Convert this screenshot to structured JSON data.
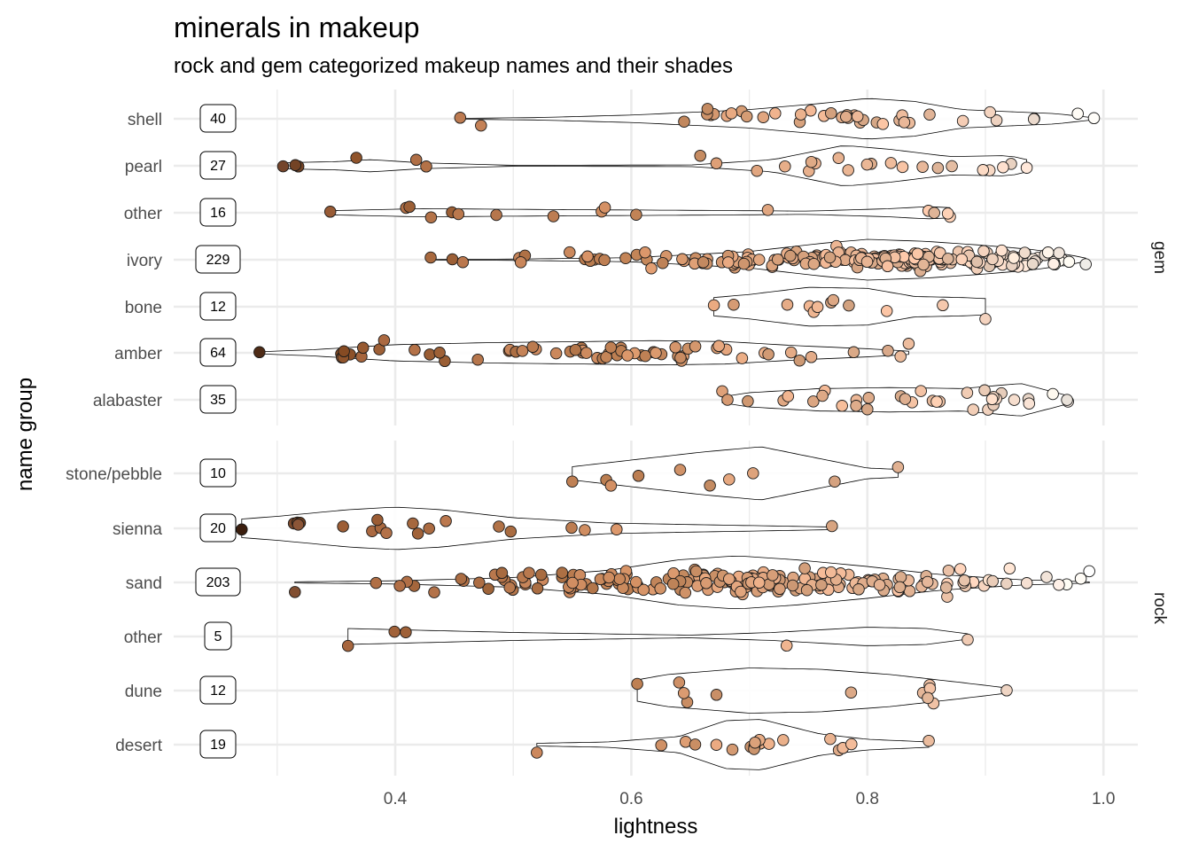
{
  "chart_data": {
    "type": "violin-jitter",
    "title": "minerals in makeup",
    "subtitle": "rock and gem categorized makeup names and their shades",
    "xlabel": "lightness",
    "ylabel": "name group",
    "xlim": [
      0.2,
      1.03
    ],
    "x_ticks": [
      0.4,
      0.6,
      0.8,
      1.0
    ],
    "x_tick_labels": [
      "0.4",
      "0.6",
      "0.8",
      "1.0"
    ],
    "grid": true,
    "facets": [
      {
        "name": "gem",
        "groups": [
          {
            "name": "shell",
            "count": "40",
            "min": 0.455,
            "max": 0.992,
            "n": 40,
            "violin_pts": [
              [
                0.455,
                0.02
              ],
              [
                0.52,
                0.06
              ],
              [
                0.6,
                0.18
              ],
              [
                0.7,
                0.45
              ],
              [
                0.76,
                0.75
              ],
              [
                0.8,
                1.0
              ],
              [
                0.84,
                0.85
              ],
              [
                0.88,
                0.45
              ],
              [
                0.92,
                0.35
              ],
              [
                0.96,
                0.25
              ],
              [
                0.992,
                0.05
              ]
            ]
          },
          {
            "name": "pearl",
            "count": "27",
            "min": 0.305,
            "max": 0.935,
            "n": 27,
            "violin_pts": [
              [
                0.305,
                0.15
              ],
              [
                0.35,
                0.2
              ],
              [
                0.38,
                0.3
              ],
              [
                0.42,
                0.15
              ],
              [
                0.5,
                0.02
              ],
              [
                0.65,
                0.04
              ],
              [
                0.72,
                0.3
              ],
              [
                0.78,
                1.0
              ],
              [
                0.82,
                0.8
              ],
              [
                0.87,
                0.45
              ],
              [
                0.92,
                0.5
              ],
              [
                0.935,
                0.3
              ]
            ]
          },
          {
            "name": "other",
            "count": "16",
            "min": 0.345,
            "max": 0.87,
            "n": 16,
            "violin_pts": [
              [
                0.345,
                0.1
              ],
              [
                0.42,
                0.2
              ],
              [
                0.55,
                0.15
              ],
              [
                0.65,
                0.12
              ],
              [
                0.75,
                0.08
              ],
              [
                0.82,
                0.2
              ],
              [
                0.85,
                0.3
              ],
              [
                0.87,
                0.25
              ]
            ]
          },
          {
            "name": "ivory",
            "count": "229",
            "min": 0.43,
            "max": 0.985,
            "n": 229,
            "violin_pts": [
              [
                0.43,
                0.01
              ],
              [
                0.5,
                0.03
              ],
              [
                0.6,
                0.1
              ],
              [
                0.7,
                0.4
              ],
              [
                0.76,
                0.8
              ],
              [
                0.8,
                1.0
              ],
              [
                0.85,
                0.9
              ],
              [
                0.9,
                0.7
              ],
              [
                0.94,
                0.5
              ],
              [
                0.97,
                0.25
              ],
              [
                0.985,
                0.08
              ]
            ]
          },
          {
            "name": "bone",
            "count": "12",
            "min": 0.67,
            "max": 0.9,
            "n": 12,
            "violin_pts": [
              [
                0.67,
                0.45
              ],
              [
                0.7,
                0.6
              ],
              [
                0.75,
                0.95
              ],
              [
                0.8,
                0.9
              ],
              [
                0.84,
                0.5
              ],
              [
                0.88,
                0.45
              ],
              [
                0.9,
                0.4
              ]
            ]
          },
          {
            "name": "amber",
            "count": "64",
            "min": 0.285,
            "max": 0.835,
            "n": 64,
            "violin_pts": [
              [
                0.285,
                0.05
              ],
              [
                0.33,
                0.15
              ],
              [
                0.4,
                0.4
              ],
              [
                0.48,
                0.5
              ],
              [
                0.56,
                0.55
              ],
              [
                0.62,
                0.6
              ],
              [
                0.68,
                0.55
              ],
              [
                0.74,
                0.35
              ],
              [
                0.8,
                0.2
              ],
              [
                0.835,
                0.08
              ]
            ]
          },
          {
            "name": "alabaster",
            "count": "35",
            "min": 0.677,
            "max": 0.97,
            "n": 35,
            "violin_pts": [
              [
                0.677,
                0.15
              ],
              [
                0.7,
                0.35
              ],
              [
                0.76,
                0.55
              ],
              [
                0.82,
                0.6
              ],
              [
                0.88,
                0.55
              ],
              [
                0.93,
                0.8
              ],
              [
                0.96,
                0.35
              ],
              [
                0.97,
                0.2
              ]
            ]
          }
        ]
      },
      {
        "name": "rock",
        "groups": [
          {
            "name": "stone/pebble",
            "count": "10",
            "min": 0.55,
            "max": 0.826,
            "n": 10,
            "violin_pts": [
              [
                0.55,
                0.25
              ],
              [
                0.6,
                0.5
              ],
              [
                0.66,
                0.8
              ],
              [
                0.71,
                1.0
              ],
              [
                0.76,
                0.55
              ],
              [
                0.8,
                0.2
              ],
              [
                0.826,
                0.15
              ]
            ]
          },
          {
            "name": "sienna",
            "count": "20",
            "min": 0.27,
            "max": 0.77,
            "n": 20,
            "violin_pts": [
              [
                0.27,
                0.35
              ],
              [
                0.3,
                0.45
              ],
              [
                0.36,
                0.7
              ],
              [
                0.4,
                0.8
              ],
              [
                0.44,
                0.7
              ],
              [
                0.5,
                0.4
              ],
              [
                0.58,
                0.2
              ],
              [
                0.68,
                0.12
              ],
              [
                0.77,
                0.05
              ]
            ]
          },
          {
            "name": "sand",
            "count": "203",
            "min": 0.315,
            "max": 0.988,
            "n": 203,
            "violin_pts": [
              [
                0.315,
                0.02
              ],
              [
                0.4,
                0.06
              ],
              [
                0.5,
                0.18
              ],
              [
                0.58,
                0.45
              ],
              [
                0.64,
                0.85
              ],
              [
                0.69,
                1.0
              ],
              [
                0.74,
                0.85
              ],
              [
                0.8,
                0.6
              ],
              [
                0.86,
                0.3
              ],
              [
                0.93,
                0.1
              ],
              [
                0.988,
                0.02
              ]
            ]
          },
          {
            "name": "other",
            "count": "5",
            "min": 0.36,
            "max": 0.885,
            "n": 5,
            "violin_pts": [
              [
                0.36,
                0.3
              ],
              [
                0.5,
                0.15
              ],
              [
                0.65,
                0.05
              ],
              [
                0.72,
                0.15
              ],
              [
                0.8,
                0.35
              ],
              [
                0.85,
                0.3
              ],
              [
                0.885,
                0.1
              ]
            ]
          },
          {
            "name": "dune",
            "count": "12",
            "min": 0.605,
            "max": 0.918,
            "n": 12,
            "violin_pts": [
              [
                0.605,
                0.4
              ],
              [
                0.63,
                0.6
              ],
              [
                0.7,
                0.85
              ],
              [
                0.76,
                0.8
              ],
              [
                0.82,
                0.6
              ],
              [
                0.88,
                0.3
              ],
              [
                0.918,
                0.1
              ]
            ]
          },
          {
            "name": "desert",
            "count": "19",
            "min": 0.52,
            "max": 0.852,
            "n": 19,
            "violin_pts": [
              [
                0.52,
                0.05
              ],
              [
                0.58,
                0.1
              ],
              [
                0.64,
                0.3
              ],
              [
                0.68,
                0.9
              ],
              [
                0.71,
                0.95
              ],
              [
                0.76,
                0.4
              ],
              [
                0.8,
                0.2
              ],
              [
                0.852,
                0.1
              ]
            ]
          }
        ]
      }
    ],
    "colors": {
      "grid": "#ebebeb",
      "text": "#4d4d4d",
      "point_dark": "#5a3520",
      "point_mid": "#c98d5e",
      "point_light": "#fff4ec"
    }
  }
}
